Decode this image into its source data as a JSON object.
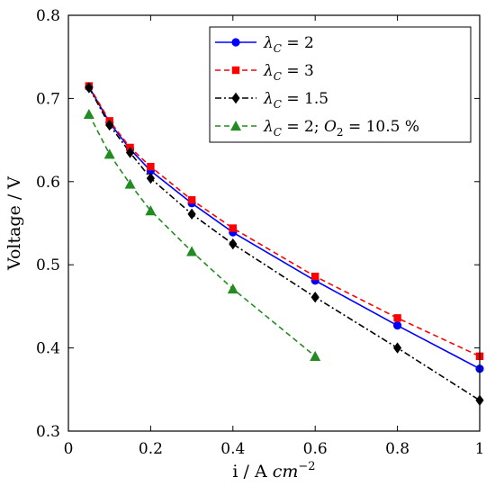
{
  "chart_data": {
    "type": "line",
    "xlabel": "i / A cm^-2",
    "xlabel_parts": {
      "prefix": "i / A ",
      "unit": "cm",
      "exp": "−2"
    },
    "ylabel": "Voltage / V",
    "xlim": [
      0,
      1
    ],
    "ylim": [
      0.3,
      0.8
    ],
    "xticks": [
      0,
      0.2,
      0.4,
      0.6,
      0.8,
      1
    ],
    "xtick_labels": [
      "0",
      "0.2",
      "0.4",
      "0.6",
      "0.8",
      "1"
    ],
    "yticks": [
      0.3,
      0.4,
      0.5,
      0.6,
      0.7,
      0.8
    ],
    "ytick_labels": [
      "0.3",
      "0.4",
      "0.5",
      "0.6",
      "0.7",
      "0.8"
    ],
    "grid": false,
    "legend_position": "top-right",
    "series": [
      {
        "name": "λC = 2",
        "label_parts": {
          "sym": "λ",
          "sub": "C",
          "rest": " = 2"
        },
        "color": "#0000ff",
        "line": "solid",
        "marker": "circle",
        "x": [
          0.05,
          0.1,
          0.15,
          0.2,
          0.3,
          0.4,
          0.6,
          0.8,
          1.0
        ],
        "y": [
          0.714,
          0.671,
          0.639,
          0.613,
          0.574,
          0.539,
          0.481,
          0.427,
          0.375
        ]
      },
      {
        "name": "λC = 3",
        "label_parts": {
          "sym": "λ",
          "sub": "C",
          "rest": " = 3"
        },
        "color": "#ff0000",
        "line": "dashed",
        "marker": "square",
        "x": [
          0.05,
          0.1,
          0.15,
          0.2,
          0.3,
          0.4,
          0.6,
          0.8,
          1.0
        ],
        "y": [
          0.715,
          0.673,
          0.641,
          0.618,
          0.578,
          0.544,
          0.486,
          0.436,
          0.39
        ]
      },
      {
        "name": "λC = 1.5",
        "label_parts": {
          "sym": "λ",
          "sub": "C",
          "rest": " = 1.5"
        },
        "color": "#000000",
        "line": "dashdot",
        "marker": "diamond",
        "x": [
          0.05,
          0.1,
          0.15,
          0.2,
          0.3,
          0.4,
          0.6,
          0.8,
          1.0
        ],
        "y": [
          0.713,
          0.668,
          0.635,
          0.604,
          0.561,
          0.525,
          0.461,
          0.4,
          0.337
        ]
      },
      {
        "name": "λC = 2; O2 = 10.5 %",
        "label_parts": {
          "sym": "λ",
          "sub": "C",
          "rest": " = 2; ",
          "sym2": "O",
          "sub2": "2",
          "rest2": " = 10.5 %"
        },
        "color": "#228b22",
        "line": "dashed",
        "marker": "triangle",
        "x": [
          0.05,
          0.1,
          0.15,
          0.2,
          0.3,
          0.4,
          0.6
        ],
        "y": [
          0.681,
          0.633,
          0.597,
          0.565,
          0.516,
          0.471,
          0.39
        ]
      }
    ]
  }
}
